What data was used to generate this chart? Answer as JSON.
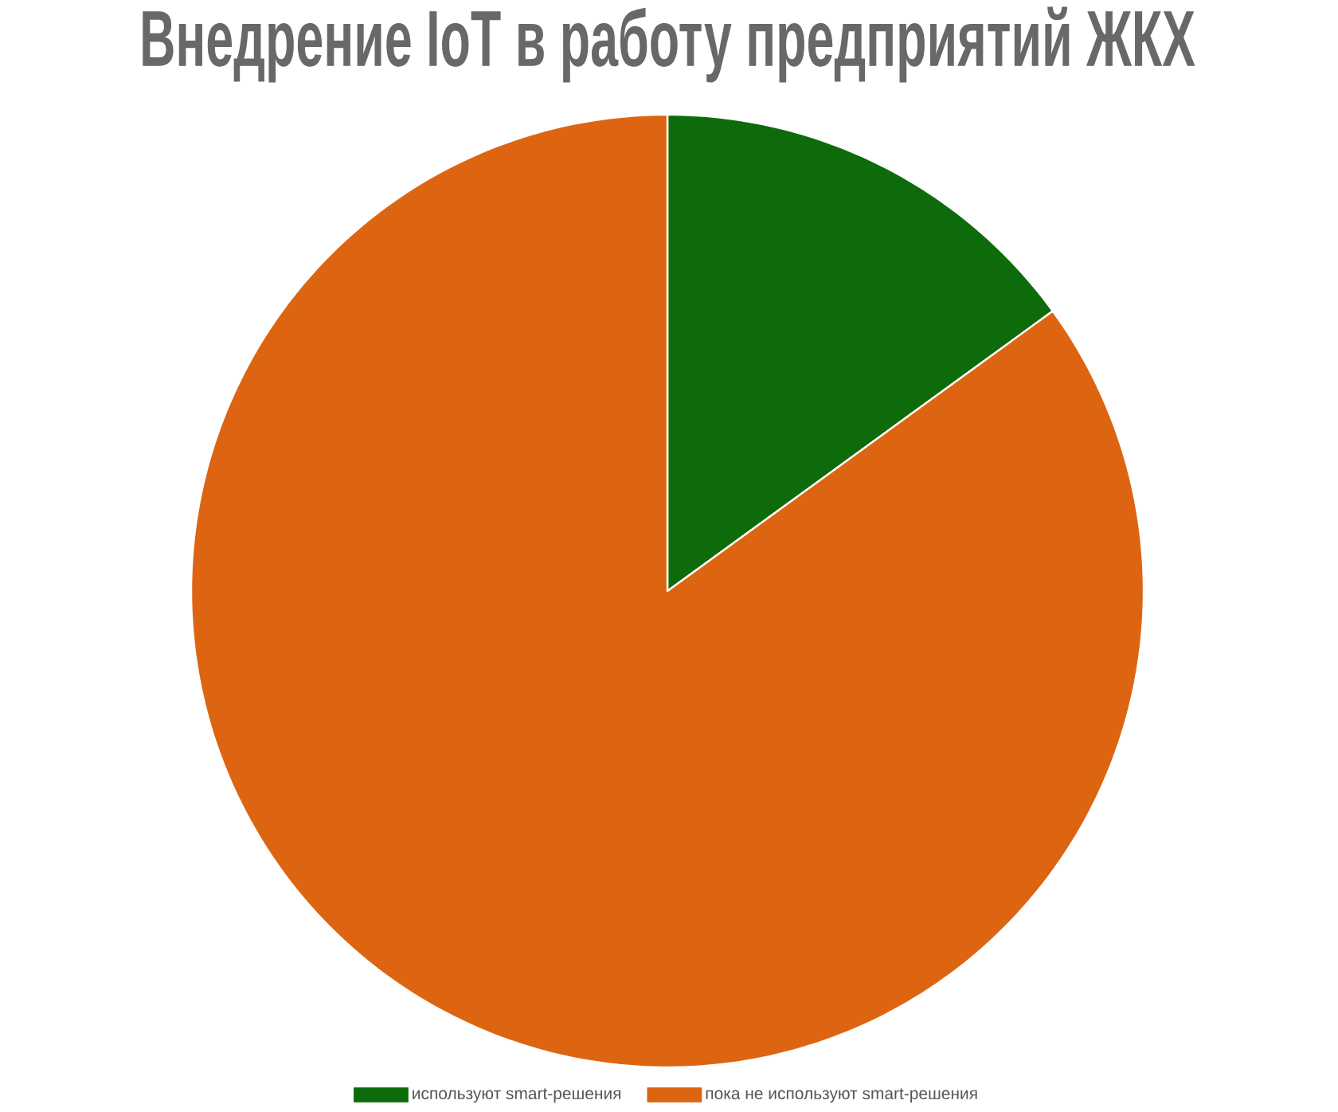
{
  "chart_data": {
    "type": "pie",
    "title": "Внедрение IoT в работу предприятий ЖКХ",
    "categories": [
      "используют smart-решения",
      "пока не используют smart-решения"
    ],
    "values": [
      15,
      85
    ],
    "colors": [
      "#0e6b0b",
      "#dd6511"
    ],
    "legend": "bottom"
  }
}
